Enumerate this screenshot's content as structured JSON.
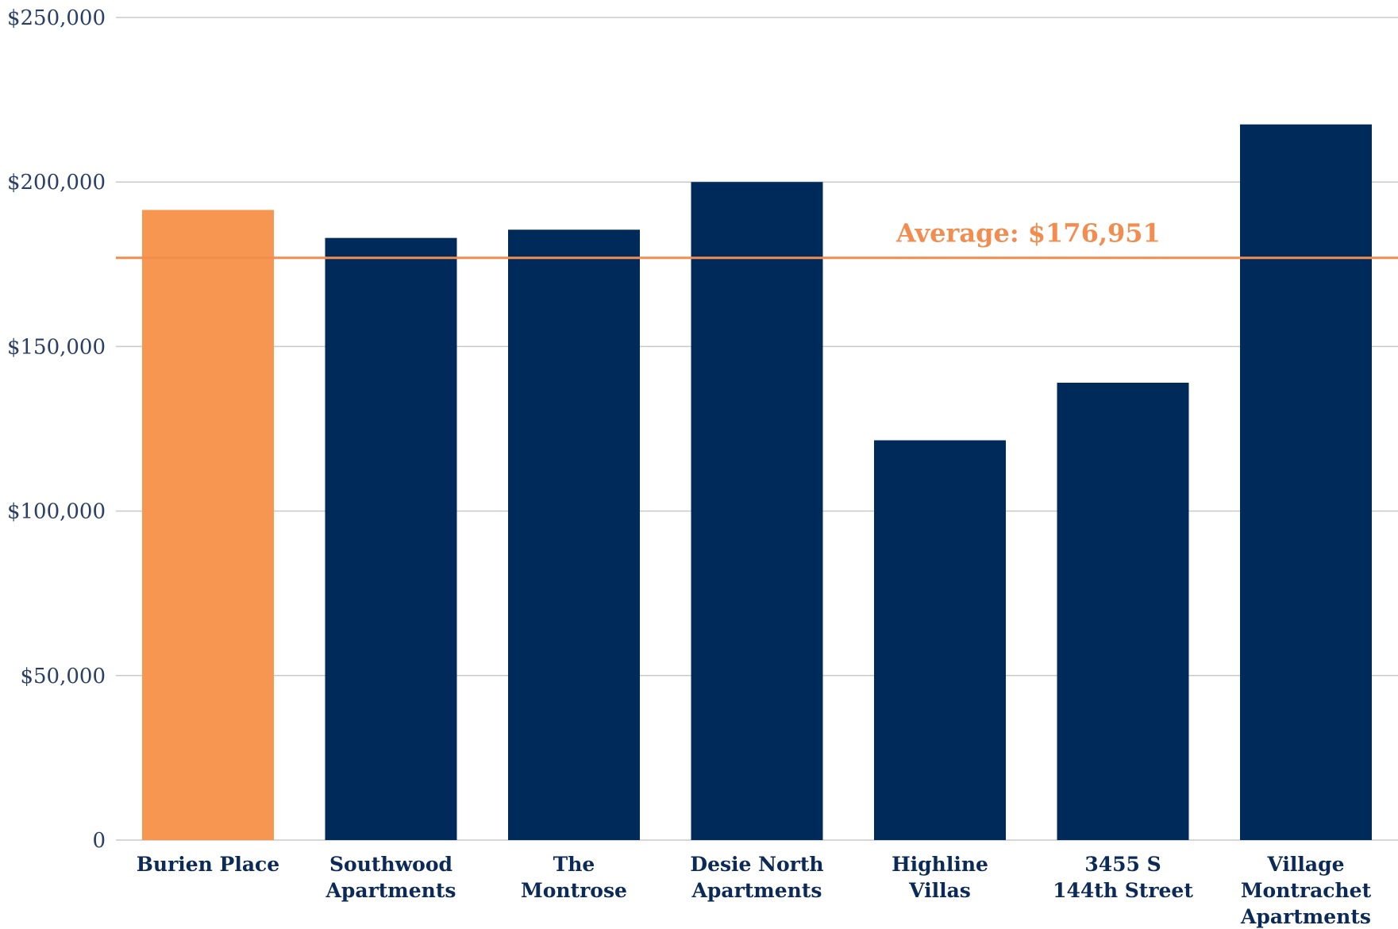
{
  "chart_data": {
    "type": "bar",
    "title": "",
    "xlabel": "",
    "ylabel": "",
    "ylim": [
      0,
      250000
    ],
    "grid": true,
    "y_ticks": [
      {
        "value": 0,
        "label": "0"
      },
      {
        "value": 50000,
        "label": "$50,000"
      },
      {
        "value": 100000,
        "label": "$100,000"
      },
      {
        "value": 150000,
        "label": "$150,000"
      },
      {
        "value": 200000,
        "label": "$200,000"
      },
      {
        "value": 250000,
        "label": "$250,000"
      }
    ],
    "categories": [
      {
        "lines": [
          "Burien Place"
        ]
      },
      {
        "lines": [
          "Southwood",
          "Apartments"
        ]
      },
      {
        "lines": [
          "The",
          "Montrose"
        ]
      },
      {
        "lines": [
          "Desie North",
          "Apartments"
        ]
      },
      {
        "lines": [
          "Highline",
          "Villas"
        ]
      },
      {
        "lines": [
          "3455 S",
          "144th Street"
        ]
      },
      {
        "lines": [
          "Village",
          "Montrachet",
          "Apartments"
        ]
      }
    ],
    "values": [
      191500,
      183000,
      185500,
      200000,
      121500,
      139000,
      217500
    ],
    "highlight_index": 0,
    "average": {
      "value": 176951,
      "label": "Average: $176,951"
    },
    "colors": {
      "bar": "#002a5a",
      "highlight": "#f79650",
      "average_line": "#f28c4f",
      "grid": "#c8c8c8",
      "tick_text": "#2a3f66",
      "category_text": "#0b2a57"
    }
  }
}
